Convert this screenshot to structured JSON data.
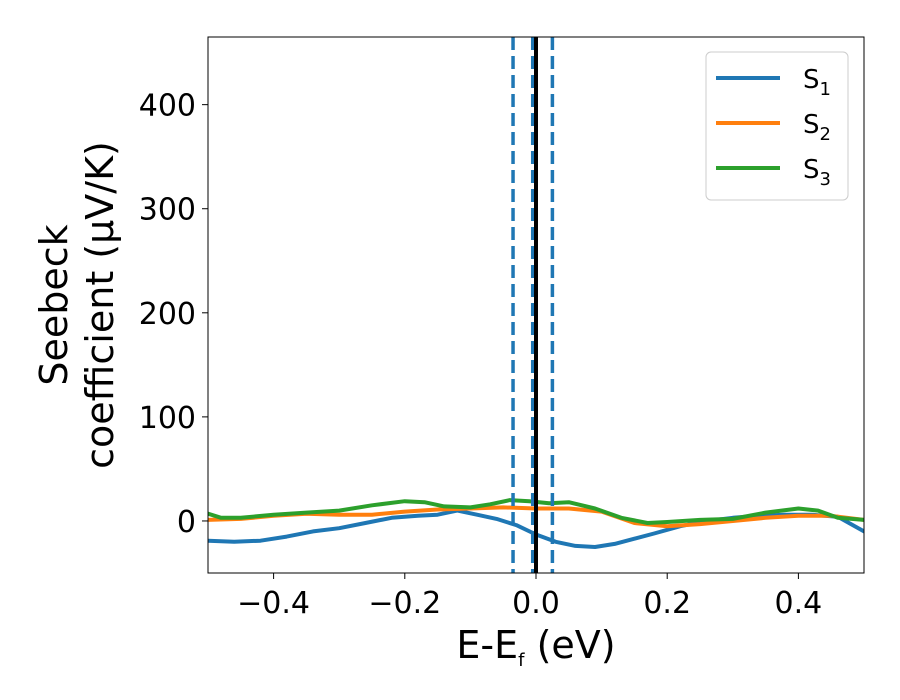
{
  "chart_data": {
    "type": "line",
    "title": "",
    "xlabel": {
      "main": "E-E",
      "sub": "f",
      "tail": " (eV)"
    },
    "ylabel": {
      "line1": "Seebeck",
      "line2": "coefficient  (μV/K)"
    },
    "xlim": [
      -0.5,
      0.5
    ],
    "ylim": [
      -50,
      465
    ],
    "xticks": [
      {
        "value": -0.4,
        "label": "−0.4"
      },
      {
        "value": -0.2,
        "label": "−0.2"
      },
      {
        "value": 0.0,
        "label": "0.0"
      },
      {
        "value": 0.2,
        "label": "0.2"
      },
      {
        "value": 0.4,
        "label": "0.4"
      }
    ],
    "yticks": [
      {
        "value": 0,
        "label": "0"
      },
      {
        "value": 100,
        "label": "100"
      },
      {
        "value": 200,
        "label": "200"
      },
      {
        "value": 300,
        "label": "300"
      },
      {
        "value": 400,
        "label": "400"
      }
    ],
    "grid": false,
    "legend_position": "top-right",
    "series": [
      {
        "name": "S",
        "sub": "1",
        "color": "#1f77b4",
        "x": [
          -0.5,
          -0.46,
          -0.42,
          -0.38,
          -0.34,
          -0.3,
          -0.26,
          -0.22,
          -0.18,
          -0.15,
          -0.12,
          -0.09,
          -0.06,
          -0.03,
          0.0,
          0.03,
          0.06,
          0.09,
          0.12,
          0.15,
          0.18,
          0.22,
          0.26,
          0.3,
          0.34,
          0.38,
          0.42,
          0.46,
          0.5
        ],
        "y": [
          -19,
          -20,
          -19,
          -15,
          -10,
          -7,
          -2,
          3,
          5,
          6,
          10,
          6,
          2,
          -4,
          -13,
          -20,
          -24,
          -25,
          -22,
          -17,
          -12,
          -5,
          0,
          3,
          5,
          6,
          6,
          4,
          -10
        ]
      },
      {
        "name": "S",
        "sub": "2",
        "color": "#ff7f0e",
        "x": [
          -0.5,
          -0.45,
          -0.4,
          -0.35,
          -0.3,
          -0.25,
          -0.2,
          -0.15,
          -0.1,
          -0.05,
          0.0,
          0.05,
          0.1,
          0.15,
          0.2,
          0.25,
          0.3,
          0.35,
          0.4,
          0.45,
          0.5
        ],
        "y": [
          1,
          2,
          5,
          7,
          6,
          6,
          9,
          11,
          12,
          13,
          12,
          12,
          9,
          -2,
          -5,
          -3,
          0,
          3,
          5,
          5,
          1
        ]
      },
      {
        "name": "S",
        "sub": "3",
        "color": "#2ca02c",
        "x": [
          -0.5,
          -0.48,
          -0.45,
          -0.4,
          -0.35,
          -0.3,
          -0.25,
          -0.2,
          -0.17,
          -0.14,
          -0.1,
          -0.07,
          -0.04,
          -0.01,
          0.02,
          0.05,
          0.09,
          0.13,
          0.17,
          0.2,
          0.25,
          0.3,
          0.35,
          0.4,
          0.43,
          0.46,
          0.5
        ],
        "y": [
          7,
          3,
          3,
          6,
          8,
          10,
          15,
          19,
          18,
          14,
          13,
          16,
          20,
          19,
          17,
          18,
          12,
          3,
          -2,
          -1,
          1,
          2,
          8,
          12,
          10,
          3,
          1
        ]
      }
    ],
    "vertical_lines": [
      {
        "x": -0.035,
        "style": "dashed",
        "color": "#1f77b4"
      },
      {
        "x": -0.005,
        "style": "dashed",
        "color": "#1f77b4"
      },
      {
        "x": 0.0,
        "style": "solid",
        "color": "#000000"
      },
      {
        "x": 0.025,
        "style": "dashed",
        "color": "#1f77b4"
      }
    ]
  }
}
